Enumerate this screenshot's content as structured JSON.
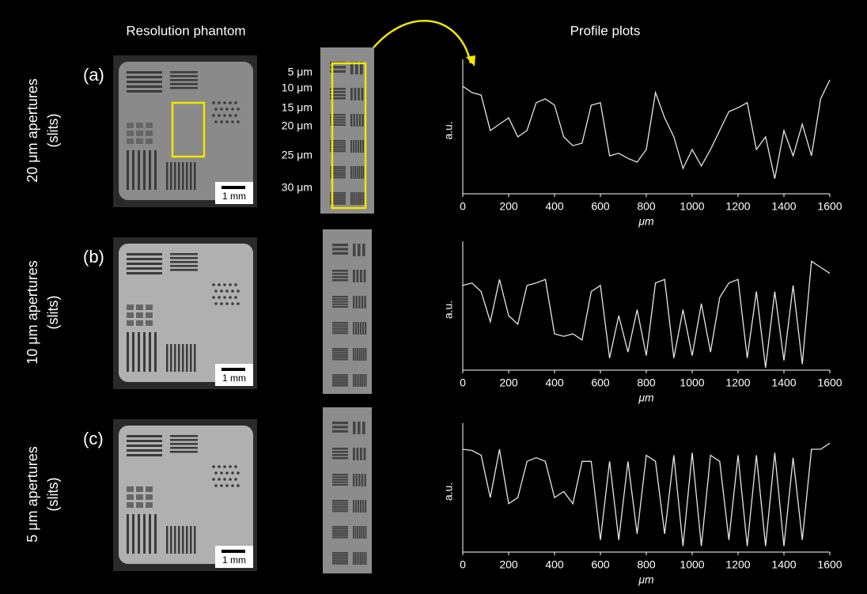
{
  "figure": {
    "headers": [
      "Resolution phantom",
      "Profile plots"
    ],
    "rows": [
      {
        "panel": "(a)",
        "label_lines": [
          "20 μm apertures",
          "(slits)"
        ],
        "scale_bar": "1 mm"
      },
      {
        "panel": "(b)",
        "label_lines": [
          "10 μm apertures",
          "(slits)"
        ],
        "scale_bar": "1 mm"
      },
      {
        "panel": "(c)",
        "label_lines": [
          "5 μm apertures",
          "(slits)"
        ],
        "scale_bar": "1 mm"
      }
    ],
    "crop_labels": [
      "5 μm",
      "10 μm",
      "15 μm",
      "20 μm",
      "25 μm",
      "30 μm"
    ]
  },
  "chart_data": [
    {
      "type": "line",
      "xlabel": "μm",
      "ylabel": "a.u.",
      "color": "#e6e6e6",
      "x": [
        0,
        40,
        80,
        120,
        160,
        200,
        240,
        280,
        320,
        360,
        400,
        440,
        480,
        520,
        560,
        600,
        640,
        680,
        720,
        760,
        800,
        840,
        880,
        920,
        960,
        1000,
        1040,
        1080,
        1120,
        1160,
        1200,
        1240,
        1280,
        1320,
        1360,
        1400,
        1440,
        1480,
        1520,
        1560,
        1600
      ],
      "values": [
        0.85,
        0.8,
        0.78,
        0.5,
        0.55,
        0.6,
        0.45,
        0.5,
        0.72,
        0.75,
        0.7,
        0.45,
        0.38,
        0.4,
        0.7,
        0.72,
        0.3,
        0.32,
        0.28,
        0.25,
        0.35,
        0.8,
        0.6,
        0.45,
        0.2,
        0.35,
        0.22,
        0.35,
        0.5,
        0.65,
        0.68,
        0.72,
        0.35,
        0.45,
        0.12,
        0.5,
        0.3,
        0.55,
        0.3,
        0.75,
        0.9
      ],
      "xlim": [
        0,
        1600
      ],
      "ylim": [
        0,
        1
      ],
      "xticks": [
        0,
        200,
        400,
        600,
        800,
        1000,
        1200,
        1400,
        1600
      ]
    },
    {
      "type": "line",
      "xlabel": "μm",
      "ylabel": "a.u.",
      "color": "#e6e6e6",
      "x": [
        0,
        40,
        80,
        120,
        160,
        200,
        240,
        280,
        320,
        360,
        400,
        440,
        480,
        520,
        560,
        600,
        640,
        680,
        720,
        760,
        800,
        840,
        880,
        920,
        960,
        1000,
        1040,
        1080,
        1120,
        1160,
        1200,
        1240,
        1280,
        1320,
        1360,
        1400,
        1440,
        1480,
        1520,
        1560,
        1600
      ],
      "values": [
        0.7,
        0.72,
        0.65,
        0.4,
        0.75,
        0.45,
        0.38,
        0.7,
        0.72,
        0.75,
        0.3,
        0.28,
        0.3,
        0.25,
        0.65,
        0.7,
        0.1,
        0.45,
        0.15,
        0.5,
        0.12,
        0.72,
        0.75,
        0.1,
        0.5,
        0.12,
        0.55,
        0.15,
        0.6,
        0.72,
        0.75,
        0.1,
        0.65,
        0.02,
        0.65,
        0.08,
        0.7,
        0.05,
        0.9,
        0.85,
        0.8
      ],
      "xlim": [
        0,
        1600
      ],
      "ylim": [
        0,
        1
      ],
      "xticks": [
        0,
        200,
        400,
        600,
        800,
        1000,
        1200,
        1400,
        1600
      ]
    },
    {
      "type": "line",
      "xlabel": "μm",
      "ylabel": "a.u.",
      "color": "#e6e6e6",
      "x": [
        0,
        40,
        80,
        120,
        160,
        200,
        240,
        280,
        320,
        360,
        400,
        440,
        480,
        520,
        560,
        600,
        640,
        680,
        720,
        760,
        800,
        840,
        880,
        920,
        960,
        1000,
        1040,
        1080,
        1120,
        1160,
        1200,
        1240,
        1280,
        1320,
        1360,
        1400,
        1440,
        1480,
        1520,
        1560,
        1600
      ],
      "values": [
        0.85,
        0.84,
        0.8,
        0.45,
        0.85,
        0.4,
        0.45,
        0.75,
        0.78,
        0.75,
        0.45,
        0.5,
        0.4,
        0.75,
        0.75,
        0.1,
        0.75,
        0.1,
        0.75,
        0.15,
        0.8,
        0.75,
        0.15,
        0.8,
        0.05,
        0.82,
        0.05,
        0.8,
        0.75,
        0.1,
        0.8,
        0.05,
        0.8,
        0.05,
        0.82,
        0.05,
        0.78,
        0.1,
        0.85,
        0.85,
        0.9
      ],
      "xlim": [
        0,
        1600
      ],
      "ylim": [
        0,
        1
      ],
      "xticks": [
        0,
        200,
        400,
        600,
        800,
        1000,
        1200,
        1400,
        1600
      ]
    }
  ]
}
